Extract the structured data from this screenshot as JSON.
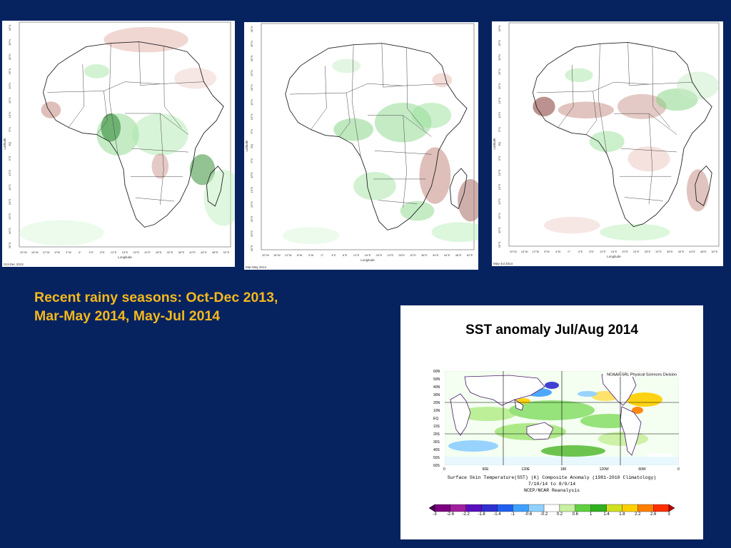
{
  "panels": [
    {
      "label": "Oct-Dec 2013"
    },
    {
      "label": "Mar-May 2014"
    },
    {
      "label": "May-Jul 2014"
    }
  ],
  "map_axis": {
    "ylabel": "Latitude",
    "xlabel": "Longitude",
    "lon_ticks": [
      "20°W",
      "16°W",
      "12°W",
      "8°W",
      "4°W",
      "0°",
      "4°E",
      "8°E",
      "12°E",
      "16°E",
      "20°E",
      "24°E",
      "28°E",
      "32°E",
      "36°E",
      "40°E",
      "44°E",
      "48°E",
      "52°E"
    ],
    "lat_ticks": [
      "40°N",
      "35°N",
      "30°N",
      "25°N",
      "20°N",
      "15°N",
      "10°N",
      "5°N",
      "EQ",
      "5°S",
      "10°S",
      "15°S",
      "20°S",
      "25°S",
      "30°S",
      "35°S"
    ]
  },
  "caption": {
    "text": "Recent rainy seasons: Oct-Dec 2013, Mar-May 2014, May-Jul 2014"
  },
  "sst": {
    "title": "SST anomaly Jul/Aug 2014",
    "source": "NOAA/ESRL Physical Sciences Division",
    "lat_ticks": [
      "60N",
      "50N",
      "40N",
      "30N",
      "20N",
      "10N",
      "EQ",
      "10S",
      "20S",
      "30S",
      "40S",
      "50S",
      "60S"
    ],
    "lon_ticks": [
      "0",
      "60E",
      "120E",
      "180",
      "120W",
      "60W",
      "0"
    ],
    "footer_line1": "Surface Skin Temperature(SST) (K) Composite Anomaly (1981-2010 Climatology)",
    "footer_line2": "7/10/14 to 8/9/14",
    "footer_line3": "NCEP/NCAR Reanalysis",
    "colorbar_labels": [
      "-3",
      "-2.6",
      "-2.2",
      "-1.8",
      "-1.4",
      "-1",
      "-0.6",
      "-0.2",
      "0.2",
      "0.6",
      "1",
      "1.4",
      "1.8",
      "2.2",
      "2.6",
      "3"
    ],
    "colorbar_colors": [
      "#4b0050",
      "#7a0080",
      "#a020a0",
      "#5a0fbf",
      "#3030d0",
      "#2060f0",
      "#40a0ff",
      "#90d0ff",
      "#ffffff",
      "#c8f0a0",
      "#60d040",
      "#30b020",
      "#d0e020",
      "#ffd000",
      "#ff8000",
      "#ff3000",
      "#c00000"
    ]
  }
}
